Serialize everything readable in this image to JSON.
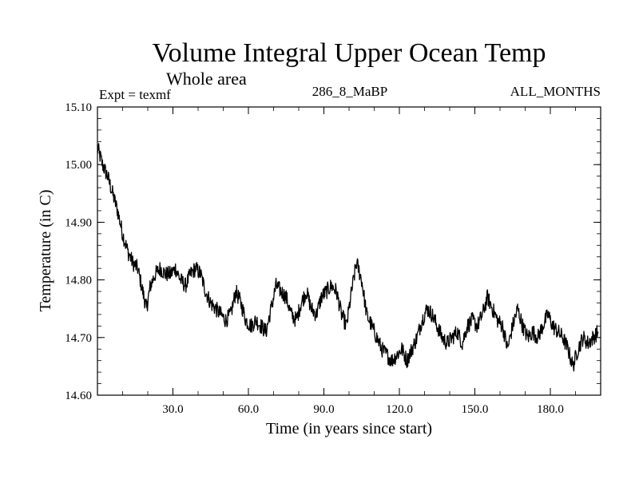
{
  "chart_data": {
    "type": "line",
    "title": "Volume Integral Upper Ocean Temp",
    "subtitle": "Whole area",
    "experiment": "Expt = texmf",
    "run_id": "286_8_MaBP",
    "months": "ALL_MONTHS",
    "xlabel": "Time (in years since start)",
    "ylabel": "Temperature (in C)",
    "xlim": [
      0,
      200
    ],
    "ylim": [
      14.6,
      15.1
    ],
    "x_ticks": [
      30,
      60,
      90,
      120,
      150,
      180
    ],
    "x_tick_labels": [
      "30.0",
      "60.0",
      "90.0",
      "120.0",
      "150.0",
      "180.0"
    ],
    "y_ticks": [
      14.6,
      14.7,
      14.8,
      14.9,
      15.0,
      15.1
    ],
    "y_tick_labels": [
      "14.60",
      "14.70",
      "14.80",
      "14.90",
      "15.00",
      "15.10"
    ],
    "grid": false,
    "series": [
      {
        "name": "Volume Integral Upper Ocean Temp",
        "color": "#000000",
        "x": [
          0,
          2,
          4,
          6,
          8,
          10,
          12,
          14,
          16,
          18,
          19.5,
          21,
          23,
          25,
          27,
          29,
          31,
          33,
          35,
          37,
          39,
          41,
          43,
          45,
          47,
          49,
          51,
          53,
          55,
          57,
          59,
          61,
          63,
          65,
          67,
          69,
          71,
          73,
          75,
          77,
          79,
          81,
          83,
          85,
          87,
          89,
          91,
          93,
          95,
          97,
          99,
          101,
          103,
          105,
          107,
          109,
          111,
          113,
          115,
          117,
          119,
          121,
          123,
          125,
          127,
          129,
          131,
          133,
          135,
          137,
          139,
          141,
          143,
          145,
          147,
          149,
          151,
          153,
          155,
          157,
          159,
          161,
          163,
          165,
          167,
          169,
          171,
          173,
          175,
          177,
          179,
          181,
          183,
          185,
          187,
          189,
          191,
          193,
          195,
          197,
          199
        ],
        "values": [
          15.03,
          15.0,
          14.98,
          14.95,
          14.92,
          14.88,
          14.85,
          14.83,
          14.82,
          14.78,
          14.75,
          14.79,
          14.81,
          14.82,
          14.81,
          14.81,
          14.82,
          14.8,
          14.79,
          14.81,
          14.82,
          14.81,
          14.78,
          14.76,
          14.75,
          14.74,
          14.73,
          14.74,
          14.78,
          14.76,
          14.73,
          14.72,
          14.73,
          14.72,
          14.71,
          14.75,
          14.79,
          14.78,
          14.77,
          14.74,
          14.73,
          14.76,
          14.78,
          14.75,
          14.74,
          14.77,
          14.78,
          14.79,
          14.78,
          14.74,
          14.72,
          14.78,
          14.83,
          14.8,
          14.74,
          14.72,
          14.7,
          14.68,
          14.67,
          14.66,
          14.67,
          14.68,
          14.66,
          14.68,
          14.7,
          14.73,
          14.75,
          14.74,
          14.72,
          14.7,
          14.69,
          14.7,
          14.71,
          14.69,
          14.72,
          14.73,
          14.72,
          14.74,
          14.77,
          14.75,
          14.73,
          14.72,
          14.68,
          14.72,
          14.75,
          14.72,
          14.7,
          14.71,
          14.7,
          14.72,
          14.74,
          14.72,
          14.71,
          14.7,
          14.68,
          14.65,
          14.68,
          14.7,
          14.69,
          14.7,
          14.71
        ]
      }
    ]
  }
}
